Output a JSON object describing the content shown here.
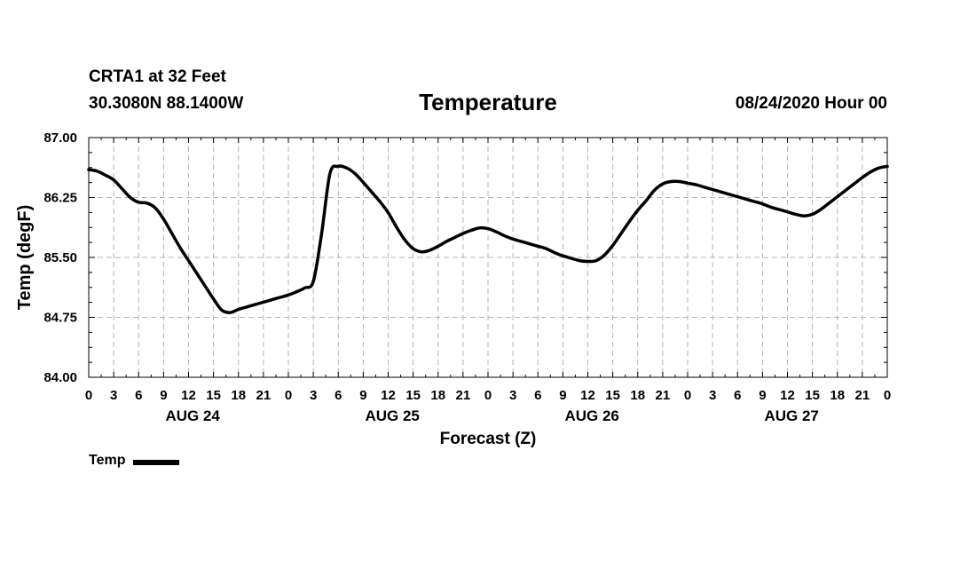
{
  "header": {
    "station": "CRTA1 at 32 Feet",
    "coordinates": "30.3080N 88.1400W",
    "title": "Temperature",
    "run_time": "08/24/2020 Hour 00"
  },
  "legend": {
    "label": "Temp"
  },
  "chart_data": {
    "type": "line",
    "title": "Temperature",
    "xlabel": "Forecast (Z)",
    "ylabel": "Temp (degF)",
    "ylim": [
      84.0,
      87.0
    ],
    "xlim_hours": [
      0,
      96
    ],
    "y_ticks": [
      "84.00",
      "84.75",
      "85.50",
      "86.25",
      "87.00"
    ],
    "x_tick_labels": [
      "0",
      "3",
      "6",
      "9",
      "12",
      "15",
      "18",
      "21",
      "0",
      "3",
      "6",
      "9",
      "12",
      "15",
      "18",
      "21",
      "0",
      "3",
      "6",
      "9",
      "12",
      "15",
      "18",
      "21",
      "0",
      "3",
      "6",
      "9",
      "12",
      "15",
      "18",
      "21",
      "0"
    ],
    "day_labels": [
      "AUG 24",
      "AUG 25",
      "AUG 26",
      "AUG 27"
    ],
    "grid": true,
    "line_color": "#000000",
    "series": [
      {
        "name": "Temp",
        "x": [
          0,
          1,
          2,
          3,
          4,
          5,
          6,
          7,
          8,
          9,
          10,
          11,
          12,
          13,
          14,
          15,
          16,
          17,
          18,
          19,
          20,
          21,
          22,
          23,
          24,
          25,
          26,
          27,
          28,
          29,
          30,
          31,
          32,
          33,
          34,
          35,
          36,
          37,
          38,
          39,
          40,
          41,
          42,
          43,
          44,
          45,
          46,
          47,
          48,
          49,
          50,
          51,
          52,
          53,
          54,
          55,
          56,
          57,
          58,
          59,
          60,
          61,
          62,
          63,
          64,
          65,
          66,
          67,
          68,
          69,
          70,
          71,
          72,
          73,
          74,
          75,
          76,
          77,
          78,
          79,
          80,
          81,
          82,
          83,
          84,
          85,
          86,
          87,
          88,
          89,
          90,
          91,
          92,
          93,
          94,
          95,
          96
        ],
        "values": [
          86.6,
          86.58,
          86.53,
          86.47,
          86.36,
          86.25,
          86.19,
          86.18,
          86.12,
          85.98,
          85.8,
          85.62,
          85.46,
          85.3,
          85.14,
          84.98,
          84.84,
          84.81,
          84.85,
          84.88,
          84.91,
          84.94,
          84.97,
          85.0,
          85.03,
          85.07,
          85.12,
          85.2,
          85.8,
          86.55,
          86.64,
          86.62,
          86.55,
          86.44,
          86.32,
          86.2,
          86.06,
          85.88,
          85.72,
          85.61,
          85.57,
          85.59,
          85.64,
          85.7,
          85.75,
          85.8,
          85.84,
          85.87,
          85.86,
          85.82,
          85.77,
          85.73,
          85.7,
          85.67,
          85.64,
          85.61,
          85.56,
          85.52,
          85.49,
          85.46,
          85.45,
          85.46,
          85.53,
          85.65,
          85.8,
          85.95,
          86.09,
          86.21,
          86.34,
          86.42,
          86.45,
          86.45,
          86.43,
          86.41,
          86.38,
          86.35,
          86.32,
          86.29,
          86.26,
          86.23,
          86.2,
          86.17,
          86.13,
          86.1,
          86.07,
          86.04,
          86.02,
          86.04,
          86.1,
          86.18,
          86.26,
          86.34,
          86.42,
          86.5,
          86.57,
          86.62,
          86.64
        ]
      }
    ]
  }
}
